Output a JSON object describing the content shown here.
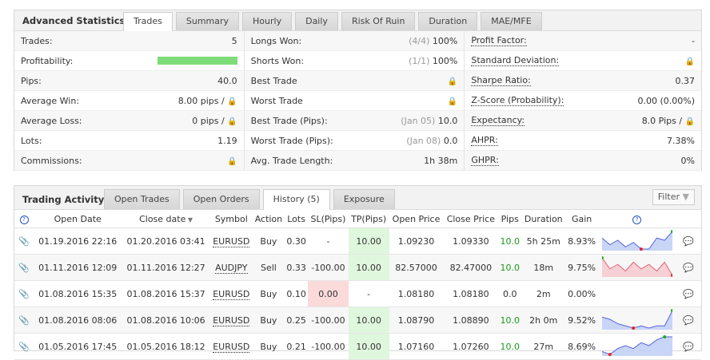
{
  "stats": {
    "title": "Advanced Statistics",
    "tabs": [
      "Trades",
      "Summary",
      "Hourly",
      "Daily",
      "Risk Of Ruin",
      "Duration",
      "MAE/MFE"
    ],
    "col1": [
      {
        "label": "Trades:",
        "value": "5"
      },
      {
        "label": "Profitability:",
        "value": ""
      },
      {
        "label": "Pips:",
        "value": "40.0"
      },
      {
        "label": "Average Win:",
        "value": "8.00 pips /"
      },
      {
        "label": "Average Loss:",
        "value": "0 pips /"
      },
      {
        "label": "Lots:",
        "value": "1.19"
      },
      {
        "label": "Commissions:",
        "value": ""
      }
    ],
    "col2": [
      {
        "label": "Longs Won:",
        "muted": "(4/4)",
        "value": "100%"
      },
      {
        "label": "Shorts Won:",
        "muted": "(1/1)",
        "value": "100%"
      },
      {
        "label": "Best Trade",
        "muted": "",
        "value": ""
      },
      {
        "label": "Worst Trade",
        "muted": "",
        "value": ""
      },
      {
        "label": "Best Trade (Pips):",
        "muted": "(Jan 05)",
        "value": "10.0"
      },
      {
        "label": "Worst Trade (Pips):",
        "muted": "(Jan 08)",
        "value": "0.0"
      },
      {
        "label": "Avg. Trade Length:",
        "muted": "",
        "value": "1h 38m"
      }
    ],
    "col3": [
      {
        "label": "Profit Factor:",
        "value": "-"
      },
      {
        "label": "Standard Deviation:",
        "value": ""
      },
      {
        "label": "Sharpe Ratio:",
        "value": "0.37"
      },
      {
        "label": "Z-Score (Probability):",
        "value": "0.00 (0.00%)"
      },
      {
        "label": "Expectancy:",
        "value": "8.0 Pips /"
      },
      {
        "label": "AHPR:",
        "value": "7.38%"
      },
      {
        "label": "GHPR:",
        "value": "0%"
      }
    ],
    "profitability_pct": 100
  },
  "activity": {
    "title": "Trading Activity",
    "tabs": [
      "Open Trades",
      "Open Orders",
      "History (5)",
      "Exposure"
    ],
    "filter": "Filter",
    "columns": [
      "Open Date",
      "Close date",
      "Symbol",
      "Action",
      "Lots",
      "SL(Pips)",
      "TP(Pips)",
      "Open Price",
      "Close Price",
      "Pips",
      "Duration",
      "Gain"
    ],
    "rows": [
      {
        "open": "01.19.2016 22:16",
        "close": "01.20.2016 03:41",
        "symbol": "EURUSD",
        "action": "Buy",
        "lots": "0.30",
        "sl": "-",
        "tp": "10.00",
        "op": "1.09230",
        "cp": "1.09330",
        "pips": "10.0",
        "dur": "5h 25m",
        "gain": "8.93%",
        "spark": [
          6,
          3,
          5,
          2,
          4,
          1,
          1,
          6,
          5,
          9
        ],
        "color": "#5566dd"
      },
      {
        "open": "01.11.2016 12:09",
        "close": "01.11.2016 12:27",
        "symbol": "AUDJPY",
        "action": "Sell",
        "lots": "0.33",
        "sl": "-100.00",
        "tp": "10.00",
        "op": "82.57000",
        "cp": "82.47000",
        "pips": "10.0",
        "dur": "18m",
        "gain": "9.75%",
        "spark": [
          9,
          4,
          6,
          3,
          7,
          4,
          6,
          3,
          7,
          1
        ],
        "color": "#dd6677"
      },
      {
        "open": "01.08.2016 15:35",
        "close": "01.08.2016 15:37",
        "symbol": "EURUSD",
        "action": "Buy",
        "lots": "0.10",
        "sl": "0.00",
        "tp": "-",
        "op": "1.08180",
        "cp": "1.08180",
        "pips": "0.0",
        "dur": "2m",
        "gain": "0.00%",
        "spark": [],
        "color": "#5566dd"
      },
      {
        "open": "01.08.2016 08:06",
        "close": "01.08.2016 10:06",
        "symbol": "EURUSD",
        "action": "Buy",
        "lots": "0.25",
        "sl": "-100.00",
        "tp": "10.00",
        "op": "1.08790",
        "cp": "1.08890",
        "pips": "10.0",
        "dur": "2h 0m",
        "gain": "9.52%",
        "spark": [
          6,
          5,
          3,
          2,
          1,
          2,
          1,
          2,
          2,
          9
        ],
        "color": "#5566dd"
      },
      {
        "open": "01.05.2016 17:45",
        "close": "01.05.2016 18:12",
        "symbol": "EURUSD",
        "action": "Buy",
        "lots": "0.21",
        "sl": "-100.00",
        "tp": "10.00",
        "op": "1.07160",
        "cp": "1.07260",
        "pips": "10.0",
        "dur": "27m",
        "gain": "8.69%",
        "spark": [
          2,
          1,
          3,
          4,
          3,
          5,
          4,
          6,
          7,
          7
        ],
        "color": "#5566dd"
      }
    ]
  }
}
